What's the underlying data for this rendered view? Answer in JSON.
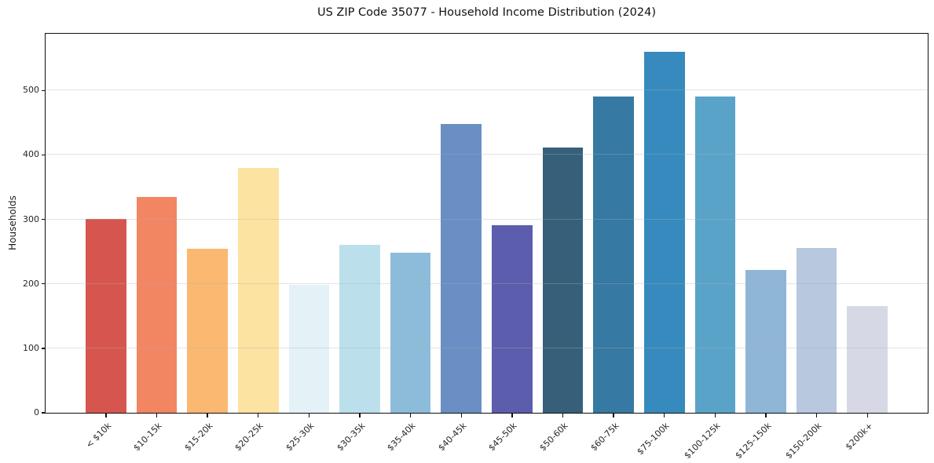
{
  "title": "US ZIP Code 35077 - Household Income Distribution (2024)",
  "chart_data": {
    "type": "bar",
    "title": "US ZIP Code 35077 - Household Income Distribution (2024)",
    "xlabel": "",
    "ylabel": "Households",
    "categories": [
      "< $10k",
      "$10-15k",
      "$15-20k",
      "$20-25k",
      "$25-30k",
      "$30-35k",
      "$35-40k",
      "$40-45k",
      "$45-50k",
      "$50-60k",
      "$60-75k",
      "$75-100k",
      "$100-125k",
      "$125-150k",
      "$150-200k",
      "$200k+"
    ],
    "values": [
      301,
      335,
      255,
      380,
      198,
      260,
      248,
      448,
      291,
      411,
      491,
      560,
      491,
      222,
      256,
      166
    ],
    "bar_colors": [
      "#d6564f",
      "#f28663",
      "#fab871",
      "#fde3a1",
      "#e4f1f7",
      "#bcdfec",
      "#8dbcdb",
      "#698fc4",
      "#5c5dac",
      "#36607a",
      "#3679a2",
      "#378abd",
      "#59a3c9",
      "#8fb6d6",
      "#b7c8df",
      "#d6d9e5"
    ],
    "ylim": [
      0,
      588
    ],
    "yticks": [
      0,
      100,
      200,
      300,
      400,
      500
    ],
    "grid": "horizontal, light gray, drawn over bars",
    "legend": "none",
    "x_tick_rotation": 45
  },
  "colors": {
    "background": "#ffffff",
    "spine": "#0f0f0f",
    "grid": "#b0b0b0",
    "tick_text": "#262626",
    "title_text": "#111111"
  }
}
